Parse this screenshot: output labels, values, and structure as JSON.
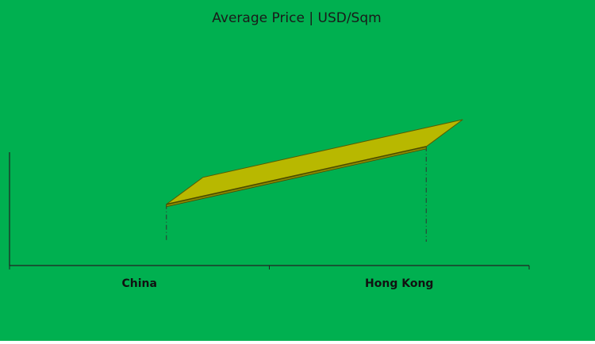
{
  "chart_data": {
    "type": "line3d",
    "title": "Average Price | USD/Sqm",
    "categories": [
      "China",
      "Hong Kong"
    ],
    "values": [
      54,
      105
    ],
    "color": "#b8b800",
    "background": "#00b050",
    "ylim": [
      0,
      100
    ]
  }
}
